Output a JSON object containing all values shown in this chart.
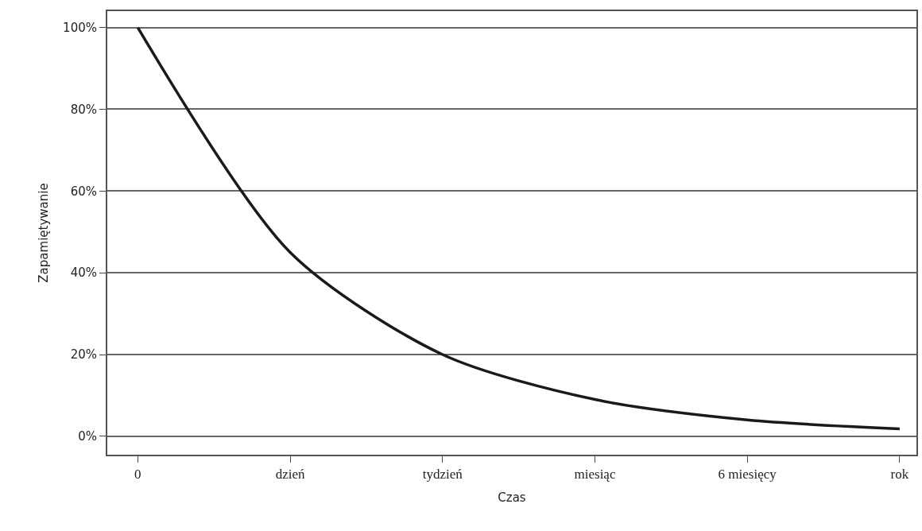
{
  "chart_data": {
    "type": "line",
    "xlabel": "Czas",
    "ylabel": "Zapamiętywanie",
    "categories": [
      "0",
      "dzień",
      "tydzień",
      "miesiąc",
      "6 miesięcy",
      "rok"
    ],
    "series": [
      {
        "color": "#1a1a1a",
        "values": [
          100,
          45,
          20,
          9,
          4,
          1.8
        ]
      }
    ],
    "ylim": [
      -4.5,
      104
    ],
    "yticks": [
      {
        "value": 0,
        "label": "0%"
      },
      {
        "value": 20,
        "label": "20%"
      },
      {
        "value": 40,
        "label": "40%"
      },
      {
        "value": 60,
        "label": "60%"
      },
      {
        "value": 80,
        "label": "80%"
      },
      {
        "value": 100,
        "label": "100%"
      }
    ],
    "grid": "y",
    "marker": "none",
    "line_style": "solid"
  }
}
